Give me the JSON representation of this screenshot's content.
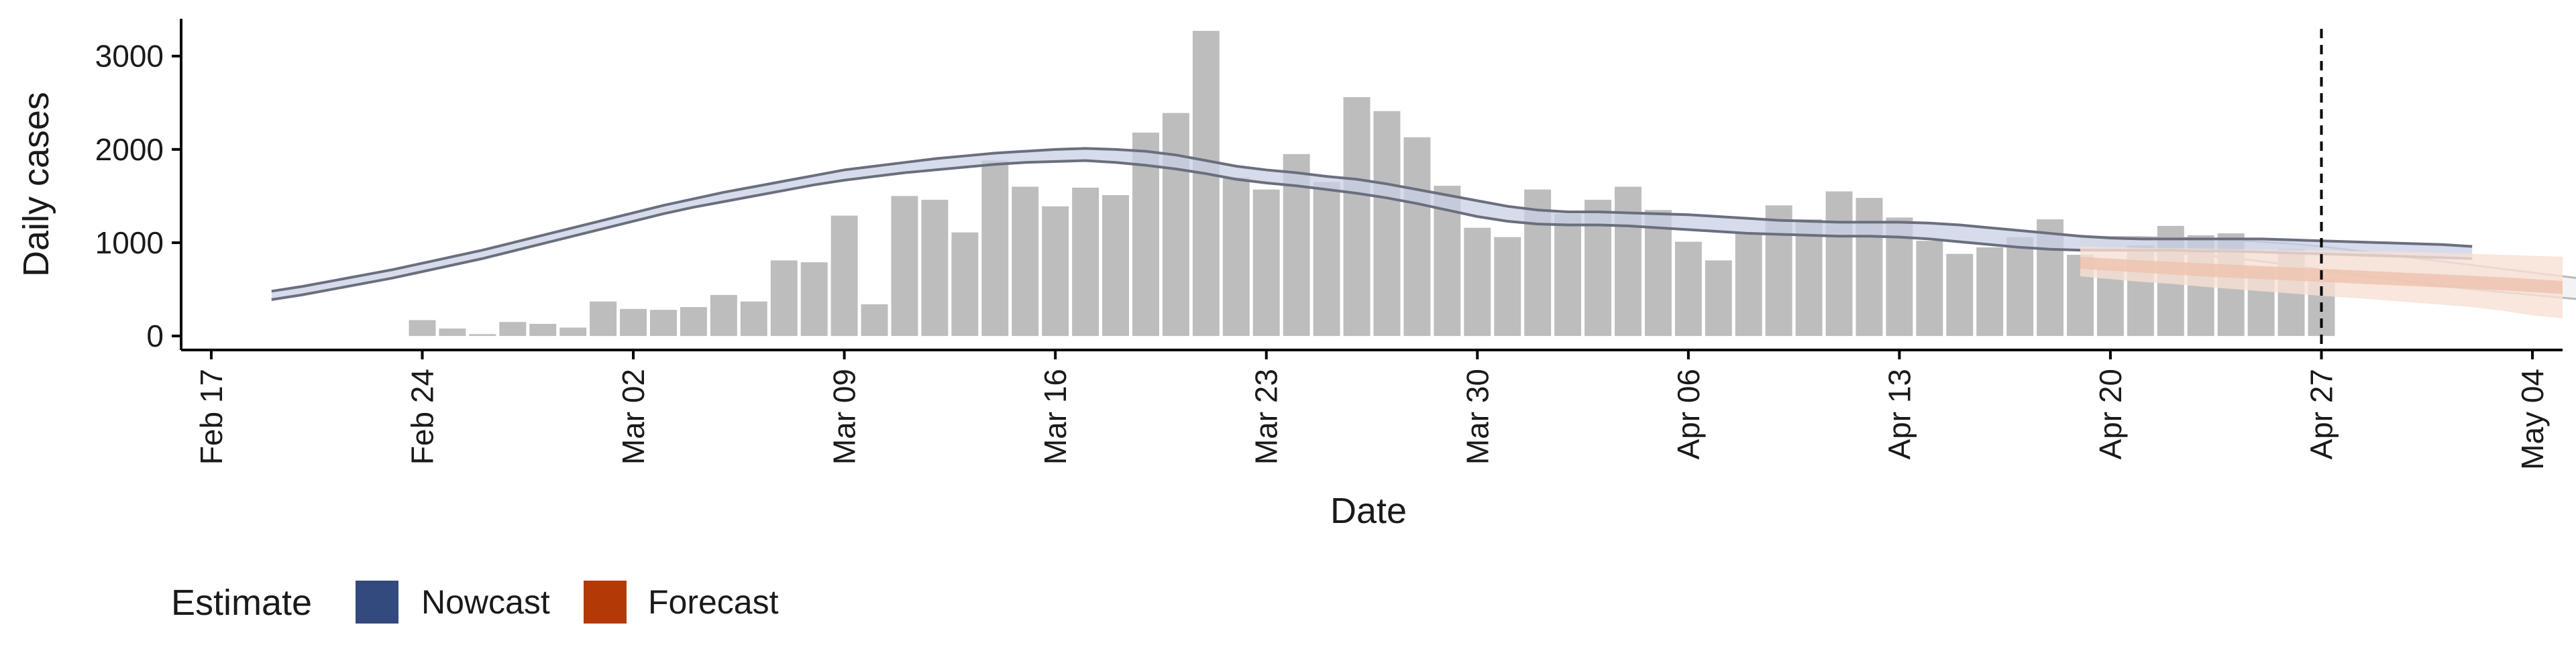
{
  "chart_data": {
    "type": "bar",
    "title": "",
    "xlabel": "Date",
    "ylabel": "Daily cases",
    "ylim": [
      -150,
      3400
    ],
    "yticks": [
      0,
      1000,
      2000,
      3000
    ],
    "xlim": [
      "2020-02-16",
      "2020-05-05"
    ],
    "xticks": [
      {
        "date": "2020-02-17",
        "label": "Feb 17"
      },
      {
        "date": "2020-02-24",
        "label": "Feb 24"
      },
      {
        "date": "2020-03-02",
        "label": "Mar 02"
      },
      {
        "date": "2020-03-09",
        "label": "Mar 09"
      },
      {
        "date": "2020-03-16",
        "label": "Mar 16"
      },
      {
        "date": "2020-03-23",
        "label": "Mar 23"
      },
      {
        "date": "2020-03-30",
        "label": "Mar 30"
      },
      {
        "date": "2020-04-06",
        "label": "Apr 06"
      },
      {
        "date": "2020-04-13",
        "label": "Apr 13"
      },
      {
        "date": "2020-04-20",
        "label": "Apr 20"
      },
      {
        "date": "2020-04-27",
        "label": "Apr 27"
      },
      {
        "date": "2020-05-04",
        "label": "May 04"
      }
    ],
    "reference_line_date": "2020-04-27",
    "reported_cases": {
      "start_date": "2020-02-24",
      "values": [
        170,
        80,
        20,
        150,
        130,
        90,
        370,
        290,
        280,
        310,
        440,
        370,
        810,
        790,
        1290,
        340,
        1500,
        1460,
        1110,
        1880,
        1600,
        1390,
        1590,
        1510,
        2180,
        2390,
        3270,
        1700,
        1570,
        1950,
        1650,
        2560,
        2410,
        2130,
        1610,
        1160,
        1060,
        1570,
        1310,
        1460,
        1600,
        1350,
        1010,
        810,
        1100,
        1400,
        1250,
        1550,
        1480,
        1270,
        1020,
        880,
        950,
        1060,
        1250,
        870,
        750,
        970,
        1180,
        1080,
        1100,
        720,
        930,
        620
      ]
    },
    "nowcast": {
      "start_date": "2020-02-19",
      "upper": [
        480,
        530,
        590,
        650,
        710,
        780,
        850,
        920,
        1000,
        1080,
        1160,
        1240,
        1320,
        1400,
        1470,
        1540,
        1600,
        1660,
        1720,
        1780,
        1820,
        1860,
        1900,
        1930,
        1960,
        1980,
        2000,
        2010,
        2000,
        1980,
        1940,
        1880,
        1820,
        1780,
        1750,
        1710,
        1680,
        1630,
        1570,
        1510,
        1450,
        1390,
        1350,
        1330,
        1330,
        1320,
        1310,
        1300,
        1280,
        1260,
        1240,
        1230,
        1220,
        1220,
        1220,
        1210,
        1190,
        1160,
        1130,
        1100,
        1070,
        1050,
        1040,
        1040,
        1040,
        1040,
        1040,
        1030,
        1020,
        1010,
        1000,
        990,
        980,
        960
      ],
      "lower": [
        390,
        440,
        500,
        560,
        620,
        690,
        760,
        830,
        910,
        990,
        1070,
        1150,
        1230,
        1310,
        1380,
        1440,
        1500,
        1560,
        1620,
        1670,
        1710,
        1750,
        1780,
        1810,
        1840,
        1860,
        1870,
        1880,
        1860,
        1830,
        1790,
        1740,
        1680,
        1640,
        1610,
        1570,
        1530,
        1480,
        1420,
        1350,
        1280,
        1230,
        1200,
        1190,
        1190,
        1180,
        1160,
        1140,
        1120,
        1100,
        1090,
        1080,
        1070,
        1070,
        1060,
        1040,
        1010,
        980,
        950,
        930,
        920,
        920,
        920,
        920,
        910,
        910,
        900,
        890,
        880,
        870,
        860,
        850,
        840,
        830
      ]
    },
    "forecast": {
      "start_date": "2020-04-19",
      "upper90": [
        960,
        950,
        945,
        940,
        935,
        930,
        925,
        920,
        915,
        910,
        905,
        900,
        890,
        880,
        870,
        860,
        850
      ],
      "lower90": [
        640,
        610,
        580,
        560,
        530,
        505,
        480,
        455,
        430,
        410,
        385,
        360,
        335,
        310,
        270,
        220,
        190
      ],
      "upper50": [
        850,
        830,
        810,
        795,
        780,
        765,
        750,
        735,
        720,
        705,
        690,
        675,
        660,
        645,
        630,
        610,
        590
      ],
      "lower50": [
        720,
        700,
        680,
        660,
        640,
        625,
        610,
        595,
        580,
        565,
        550,
        535,
        520,
        505,
        490,
        470,
        450
      ],
      "fade_upper": [
        1070,
        1060,
        1060,
        1050,
        1050,
        1030,
        1010,
        990,
        960,
        920,
        880,
        840,
        800,
        760,
        720,
        680,
        640,
        600
      ],
      "fade_lower": [
        940,
        930,
        920,
        900,
        870,
        840,
        800,
        760,
        710,
        660,
        620,
        580,
        540,
        500,
        470,
        440,
        410,
        380
      ]
    },
    "legend": {
      "title": "Estimate",
      "placement": "bottom-left",
      "items": [
        {
          "label": "Nowcast",
          "color": "#334A7E"
        },
        {
          "label": "Forecast",
          "color": "#B33A06"
        }
      ]
    },
    "colors": {
      "bar": "#BDBDBD",
      "nowcast_fill": "#C9D0E6",
      "nowcast_line": "#6A6F7E",
      "forecast_fill_outer": "#F7E0D5",
      "forecast_fill_inner": "#EFC3B0",
      "forecast_fade": "#F3F3F3",
      "forecast_fade_line": "#B9B9B9",
      "reference_line": "#000000",
      "axis": "#000000"
    }
  }
}
